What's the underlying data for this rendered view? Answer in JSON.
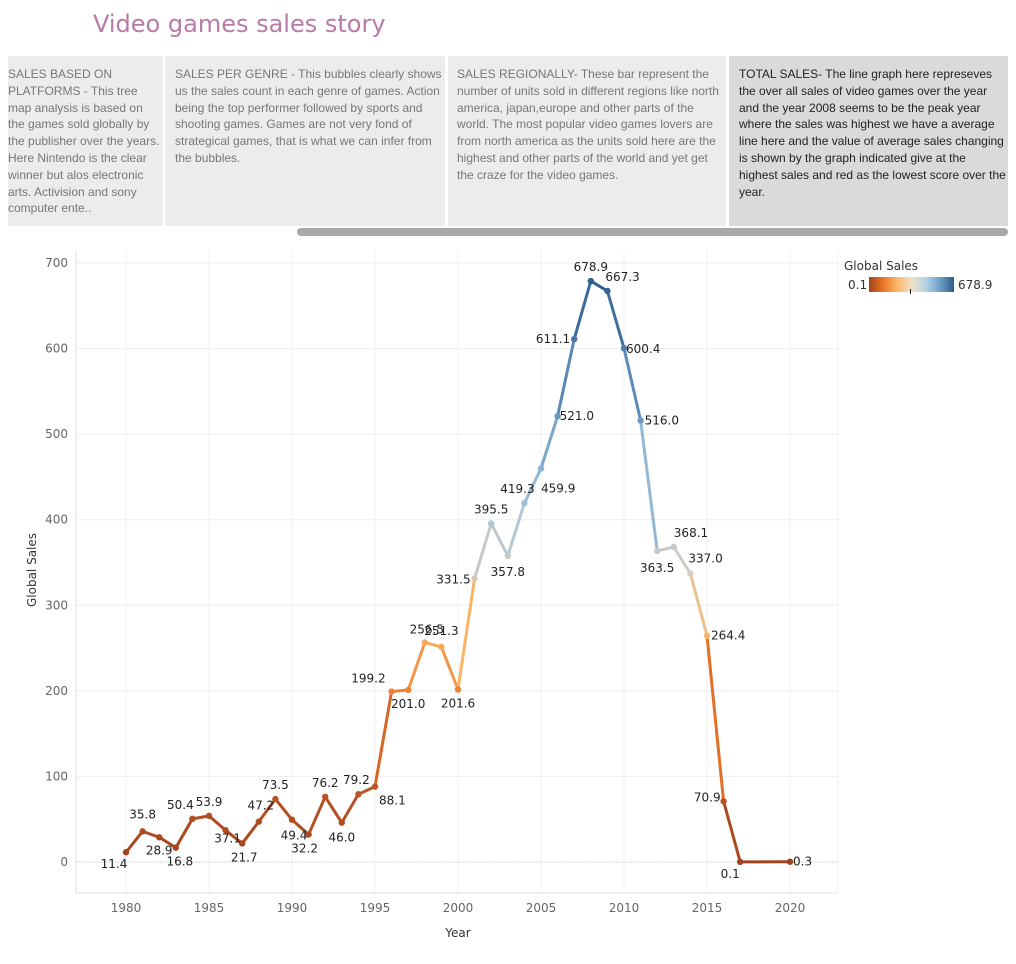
{
  "story": {
    "title": "Video games sales story",
    "points": [
      {
        "text": "SALES BASED ON PLATFORMS - This tree map analysis is based on the games sold globally by the publisher over the years. Here Nintendo is the clear winner but alos electronic arts. Activision and sony computer ente..",
        "active": false
      },
      {
        "text": "SALES PER GENRE - This bubbles clearly shows us the sales count in each genre of games. Action being the top performer followed by sports and shooting games. Games are not very fond of strategical games, that is what we can infer from the bubbles.",
        "active": false
      },
      {
        "text": "SALES REGIONALLY- These bar represent the number of units sold in different regions like north america, japan,europe and other parts of the world. The most popular video games lovers are from north america as the units sold here are the highest and other parts of the world and yet get the craze for the video games.",
        "active": false
      },
      {
        "text": "TOTAL SALES- The line graph here represeves the over all sales of video games over the year and the year 2008 seems to be the peak year where the sales was highest we have a average line here and the value of average sales changing is shown by the graph indicated give at the highest sales and red as the lowest score over the year.",
        "active": true
      }
    ]
  },
  "legend": {
    "title": "Global Sales",
    "min_label": "0.1",
    "max_label": "678.9"
  },
  "colors": {
    "low": "#a0421c",
    "mid_low": "#e97628",
    "light_orange": "#fbb869",
    "neutral": "#d8ccbd",
    "light_blue": "#a3c6dd",
    "mid_blue": "#6f9fc7",
    "high": "#2e5d91"
  },
  "chart_data": {
    "type": "line",
    "title": "",
    "xlabel": "Year",
    "ylabel": "Global Sales",
    "xlim": [
      1977,
      2028
    ],
    "ylim": [
      -30,
      720
    ],
    "x_ticks": [
      1980,
      1985,
      1990,
      1995,
      2000,
      2005,
      2010,
      2015,
      2020
    ],
    "y_ticks": [
      0,
      100,
      200,
      300,
      400,
      500,
      600,
      700
    ],
    "grid": true,
    "legend_position": "top-right",
    "series": [
      {
        "x": [
          1980,
          1981,
          1982,
          1983,
          1984,
          1985,
          1986,
          1987,
          1988,
          1989,
          1990,
          1991,
          1992,
          1993,
          1994,
          1995,
          1996,
          1997,
          1998,
          1999,
          2000,
          2001,
          2002,
          2003,
          2004,
          2005,
          2006,
          2007,
          2008,
          2009,
          2010,
          2011,
          2012,
          2013,
          2014,
          2015,
          2016,
          2017,
          2020
        ],
        "values": [
          11.4,
          35.8,
          28.9,
          16.8,
          50.4,
          53.9,
          37.1,
          21.7,
          47.2,
          73.5,
          49.4,
          32.2,
          76.2,
          46.0,
          79.2,
          88.1,
          199.2,
          201.0,
          256.5,
          251.3,
          201.6,
          331.5,
          395.5,
          357.8,
          419.3,
          459.9,
          521.0,
          611.1,
          678.9,
          667.3,
          600.4,
          516.0,
          363.5,
          368.1,
          337.0,
          264.4,
          70.9,
          0.1,
          0.3
        ]
      }
    ],
    "point_labels": [
      {
        "x": 1980,
        "text": "11.4"
      },
      {
        "x": 1981,
        "text": "35.8"
      },
      {
        "x": 1982,
        "text": "28.9"
      },
      {
        "x": 1983,
        "text": "16.8"
      },
      {
        "x": 1984,
        "text": "50.4"
      },
      {
        "x": 1985,
        "text": "53.9"
      },
      {
        "x": 1986,
        "text": "37.1"
      },
      {
        "x": 1987,
        "text": "21.7"
      },
      {
        "x": 1988,
        "text": "47.2"
      },
      {
        "x": 1989,
        "text": "73.5"
      },
      {
        "x": 1990,
        "text": "49.4"
      },
      {
        "x": 1991,
        "text": "32.2"
      },
      {
        "x": 1992,
        "text": "76.2"
      },
      {
        "x": 1993,
        "text": "46.0"
      },
      {
        "x": 1994,
        "text": "79.2"
      },
      {
        "x": 1995,
        "text": "88.1"
      },
      {
        "x": 1996,
        "text": "199.2"
      },
      {
        "x": 1997,
        "text": "201.0"
      },
      {
        "x": 1998,
        "text": "256.5"
      },
      {
        "x": 1999,
        "text": "251.3"
      },
      {
        "x": 2000,
        "text": "201.6"
      },
      {
        "x": 2001,
        "text": "331.5"
      },
      {
        "x": 2002,
        "text": "395.5"
      },
      {
        "x": 2003,
        "text": "357.8"
      },
      {
        "x": 2004,
        "text": "419.3"
      },
      {
        "x": 2005,
        "text": "459.9"
      },
      {
        "x": 2006,
        "text": "521.0"
      },
      {
        "x": 2007,
        "text": "611.1"
      },
      {
        "x": 2008,
        "text": "678.9"
      },
      {
        "x": 2009,
        "text": "667.3"
      },
      {
        "x": 2010,
        "text": "600.4"
      },
      {
        "x": 2011,
        "text": "516.0"
      },
      {
        "x": 2012,
        "text": "363.5"
      },
      {
        "x": 2013,
        "text": "368.1"
      },
      {
        "x": 2014,
        "text": "337.0"
      },
      {
        "x": 2015,
        "text": "264.4"
      },
      {
        "x": 2016,
        "text": "70.9"
      },
      {
        "x": 2017,
        "text": "0.1"
      },
      {
        "x": 2020,
        "text": "0.3"
      }
    ]
  }
}
